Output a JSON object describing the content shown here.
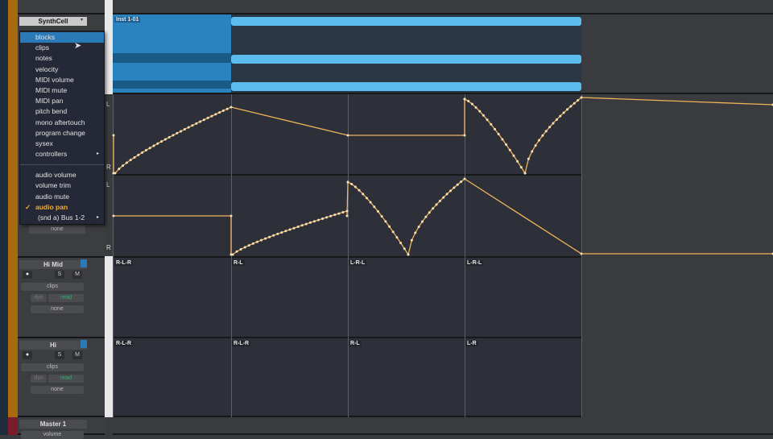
{
  "tracks": [
    {
      "name": "SynthCell",
      "clip": "Inst 1-01"
    },
    {
      "name": "Hi Mid",
      "view": "clips",
      "dyn": "dyn",
      "mode": "read",
      "group": "none",
      "buttons": [
        "S",
        "M"
      ],
      "clips": [
        "R-L-R",
        "R-L",
        "L-R-L",
        "L-R-L"
      ]
    },
    {
      "name": "Hi",
      "view": "clips",
      "dyn": "dyn",
      "mode": "read",
      "group": "none",
      "buttons": [
        "S",
        "M"
      ],
      "clips": [
        "R-L-R",
        "R-L-R",
        "R-L",
        "L-R"
      ]
    },
    {
      "name": "Master 1",
      "view": "volume"
    }
  ],
  "lane_labels": {
    "top": "L",
    "bottom": "R"
  },
  "hidden_group": "none",
  "menu": {
    "items": [
      "blocks",
      "clips",
      "notes",
      "velocity",
      "MIDI volume",
      "MIDI mute",
      "MIDI pan",
      "pitch bend",
      "mono aftertouch",
      "program change",
      "sysex",
      "controllers"
    ],
    "audio_items": [
      "audio volume",
      "volume trim",
      "audio mute",
      "audio pan",
      "(snd a) Bus 1-2"
    ],
    "highlighted": "blocks",
    "checked": "audio pan",
    "check_mark": "✓",
    "submenu_arrow": "▸"
  },
  "colors": {
    "track": "#a8690f",
    "automation": "#f0b45a",
    "clip": "#5bbcf0",
    "highlight": "#2a7ab8"
  }
}
